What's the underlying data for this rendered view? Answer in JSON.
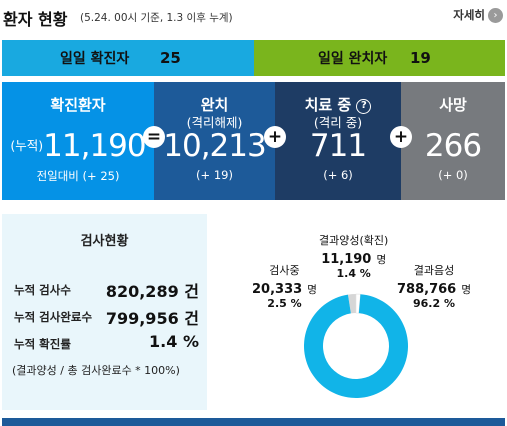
{
  "header": {
    "title": "환자 현황",
    "subtitle": "(5.24. 00시 기준, 1.3 이후 누계)",
    "more_label": "자세히",
    "more_icon": "chevron-right-circle-icon"
  },
  "daily": {
    "confirmed_label": "일일 확진자",
    "confirmed_value": "25",
    "released_label": "일일 완치자",
    "released_value": "19"
  },
  "stats": {
    "confirmed": {
      "title": "확진환자",
      "prefix": "(누적)",
      "value": "11,190",
      "change": "전일대비 (+ 25)",
      "color": "#0592e6"
    },
    "released": {
      "title": "완치",
      "subtitle": "(격리해제)",
      "value": "10,213",
      "change": "(+ 19)",
      "color": "#1d5a99"
    },
    "treating": {
      "title": "치료 중",
      "subtitle": "(격리 중)",
      "value": "711",
      "change": "(+ 6)",
      "help_icon": "question-circle-icon",
      "color": "#1e3c64"
    },
    "deceased": {
      "title": "사망",
      "value": "266",
      "change": "(+ 0)",
      "color": "#777a7e"
    },
    "operators": [
      "=",
      "+",
      "+"
    ]
  },
  "tests": {
    "title": "검사현황",
    "rows": [
      {
        "label": "누적 검사수",
        "value": "820,289 건"
      },
      {
        "label": "누적 검사완료수",
        "value": "799,956 건"
      },
      {
        "label": "누적 확진률",
        "value": "1.4 %"
      }
    ],
    "footnote": "(결과양성 / 총 검사완료수 * 100%)"
  },
  "chart_data": {
    "type": "pie",
    "donut": true,
    "categories": [
      "검사중",
      "결과양성(확진)",
      "결과음성"
    ],
    "counts": [
      "20,333",
      "11,190",
      "788,766"
    ],
    "values": [
      20333,
      11190,
      788766
    ],
    "unit": "명",
    "percents": [
      "2.5 %",
      "1.4 %",
      "96.2 %"
    ],
    "colors": [
      "#d6d6d6",
      "#ffffff",
      "#11b4e8"
    ],
    "legend": "none"
  },
  "colors": {
    "daily_confirmed": "#19a9e0",
    "daily_released": "#7ab51d",
    "bottom_bar": "#1d5a99"
  }
}
